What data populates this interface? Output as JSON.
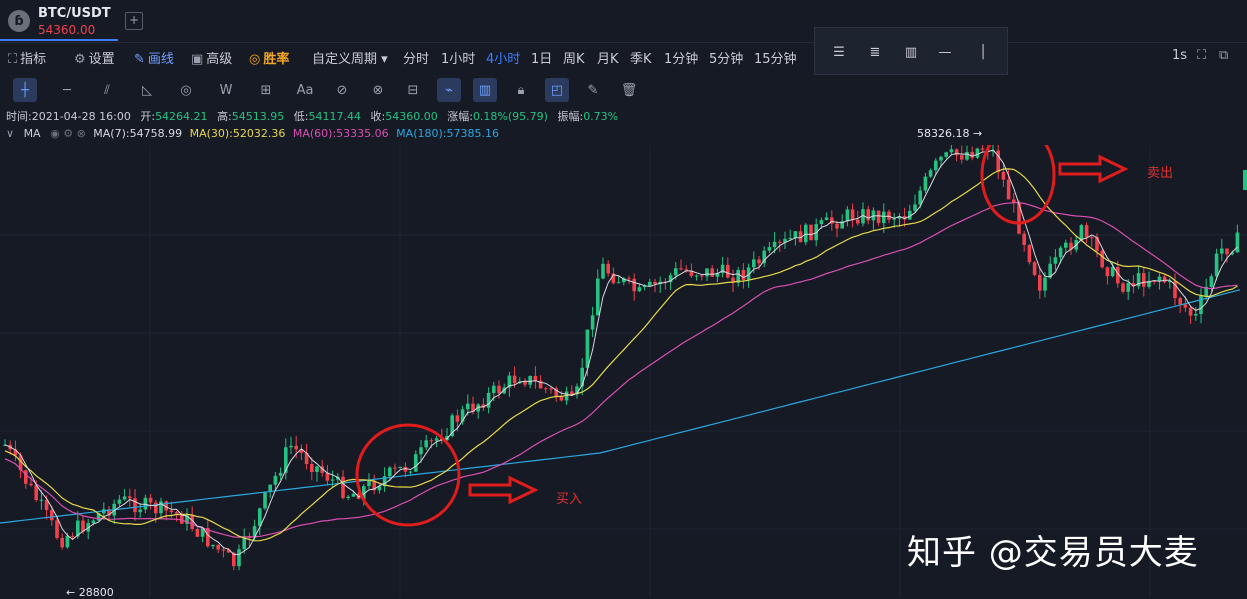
{
  "header": {
    "pair": "BTC/USDT",
    "price": "54360.00",
    "coin_icon": "btc-coin-icon",
    "add_tab": "+"
  },
  "menu": [
    {
      "icon": "indicator-icon",
      "glyph": "⛶",
      "label": "指标"
    },
    {
      "icon": "gear-icon",
      "glyph": "⚙",
      "label": "设置"
    },
    {
      "icon": "draw-icon",
      "glyph": "✎",
      "label": "画线",
      "active": true
    },
    {
      "icon": "advanced-icon",
      "glyph": "▣",
      "label": "高级"
    },
    {
      "icon": "win-rate-icon",
      "glyph": "◎",
      "label": "胜率",
      "highlight": true
    },
    {
      "label": "自定义周期 ▾"
    },
    {
      "label": "分时"
    },
    {
      "label": "1小时"
    },
    {
      "label": "4小时",
      "active": true
    },
    {
      "label": "1日"
    },
    {
      "label": "周K"
    },
    {
      "label": "月K"
    },
    {
      "label": "季K"
    },
    {
      "label": "1分钟"
    },
    {
      "label": "5分钟"
    },
    {
      "label": "15分钟"
    }
  ],
  "right_controls": {
    "interval": "1s"
  },
  "info": {
    "time_label": "时间:",
    "time": "2021-04-28 16:00",
    "open_label": "开:",
    "open": "54264.21",
    "high_label": "高:",
    "high": "54513.95",
    "low_label": "低:",
    "low": "54117.44",
    "close_label": "收:",
    "close": "54360.00",
    "change_label": "涨幅:",
    "change": "0.18%(95.79)",
    "amp_label": "振幅:",
    "amp": "0.73%"
  },
  "ma": {
    "name": "MA",
    "ma7": "MA(7):54758.99",
    "ma30": "MA(30):52032.36",
    "ma60": "MA(60):53335.06",
    "ma180": "MA(180):57385.16",
    "colors": {
      "ma7": "#d8d8e0",
      "ma30": "#e8d84a",
      "ma60": "#d94fb0",
      "ma180": "#2aa8e0"
    }
  },
  "chart_data": {
    "type": "candlestick",
    "title": "BTC/USDT 4小时",
    "high_marker": "58326.18 →",
    "low_marker": "← 28800",
    "colors": {
      "up": "#26c281",
      "down": "#f0414d"
    }
  },
  "annotations": {
    "buy": "买入",
    "sell": "卖出"
  },
  "watermark": "知乎 @交易员大麦"
}
